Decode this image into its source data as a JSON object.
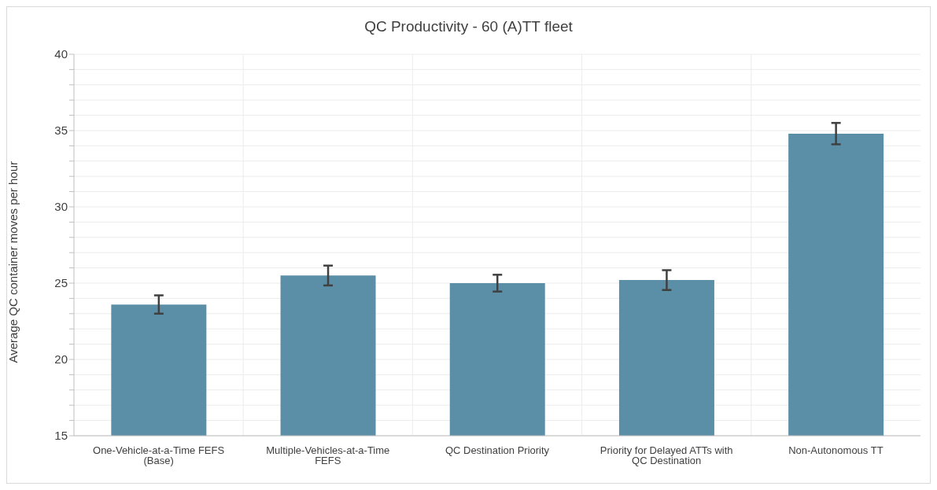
{
  "chart_data": {
    "type": "bar",
    "title": "QC Productivity - 60 (A)TT fleet",
    "ylabel": "Average QC container moves per hour",
    "categories": [
      "One-Vehicle-at-a-Time FEFS (Base)",
      "Multiple-Vehicles-at-a-Time FEFS",
      "QC Destination Priority",
      "Priority for Delayed ATTs with QC Destination",
      "Non-Autonomous TT"
    ],
    "values": [
      23.6,
      25.5,
      25.0,
      25.2,
      34.8
    ],
    "errors": [
      0.6,
      0.65,
      0.55,
      0.65,
      0.7
    ],
    "color": "#5b8fa8",
    "ylim": [
      15,
      40
    ],
    "yticks": [
      15,
      {
        "value": 16,
        "label": null
      },
      {
        "value": 17,
        "label": null
      },
      {
        "value": 18,
        "label": null
      },
      {
        "value": 19,
        "label": null
      },
      20,
      {
        "value": 21,
        "label": null
      },
      {
        "value": 22,
        "label": null
      },
      {
        "value": 23,
        "label": null
      },
      {
        "value": 24,
        "label": null
      },
      25,
      {
        "value": 26,
        "label": null
      },
      {
        "value": 27,
        "label": null
      },
      {
        "value": 28,
        "label": null
      },
      {
        "value": 29,
        "label": null
      },
      30,
      {
        "value": 31,
        "label": null
      },
      {
        "value": 32,
        "label": null
      },
      {
        "value": 33,
        "label": null
      },
      {
        "value": 34,
        "label": null
      },
      35,
      {
        "value": 36,
        "label": null
      },
      {
        "value": 37,
        "label": null
      },
      {
        "value": 38,
        "label": null
      },
      {
        "value": 39,
        "label": null
      },
      40
    ],
    "grid": true,
    "legend": false
  }
}
